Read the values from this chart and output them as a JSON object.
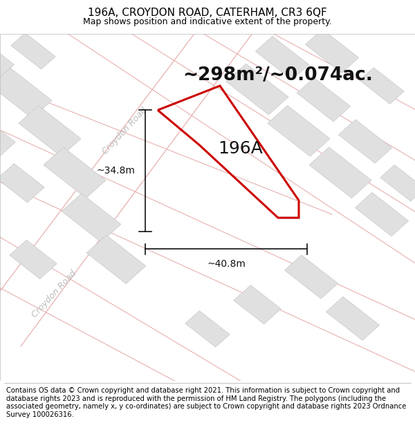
{
  "title_line1": "196A, CROYDON ROAD, CATERHAM, CR3 6QF",
  "title_line2": "Map shows position and indicative extent of the property.",
  "area_text": "~298m²/~0.074ac.",
  "label_196A": "196A",
  "dim_width": "~40.8m",
  "dim_height": "~34.8m",
  "road_label_diag": "Croydon Road",
  "road_label_vert": "Croydon Road",
  "footer_text": "Contains OS data © Crown copyright and database right 2021. This information is subject to Crown copyright and database rights 2023 and is reproduced with the permission of HM Land Registry. The polygons (including the associated geometry, namely x, y co-ordinates) are subject to Crown copyright and database rights 2023 Ordnance Survey 100026316.",
  "bg_color": "#ffffff",
  "map_bg": "#f0efee",
  "road_line_color": "#e8b0b0",
  "building_fill": "#e0e0e0",
  "building_edge": "#c8c8c8",
  "property_color": "#cc0000",
  "dim_line_color": "#111111",
  "title_fontsize": 11,
  "subtitle_fontsize": 9,
  "area_fontsize": 19,
  "label_fontsize": 18,
  "dim_fontsize": 10,
  "road_label_fontsize": 9,
  "footer_fontsize": 7.2
}
